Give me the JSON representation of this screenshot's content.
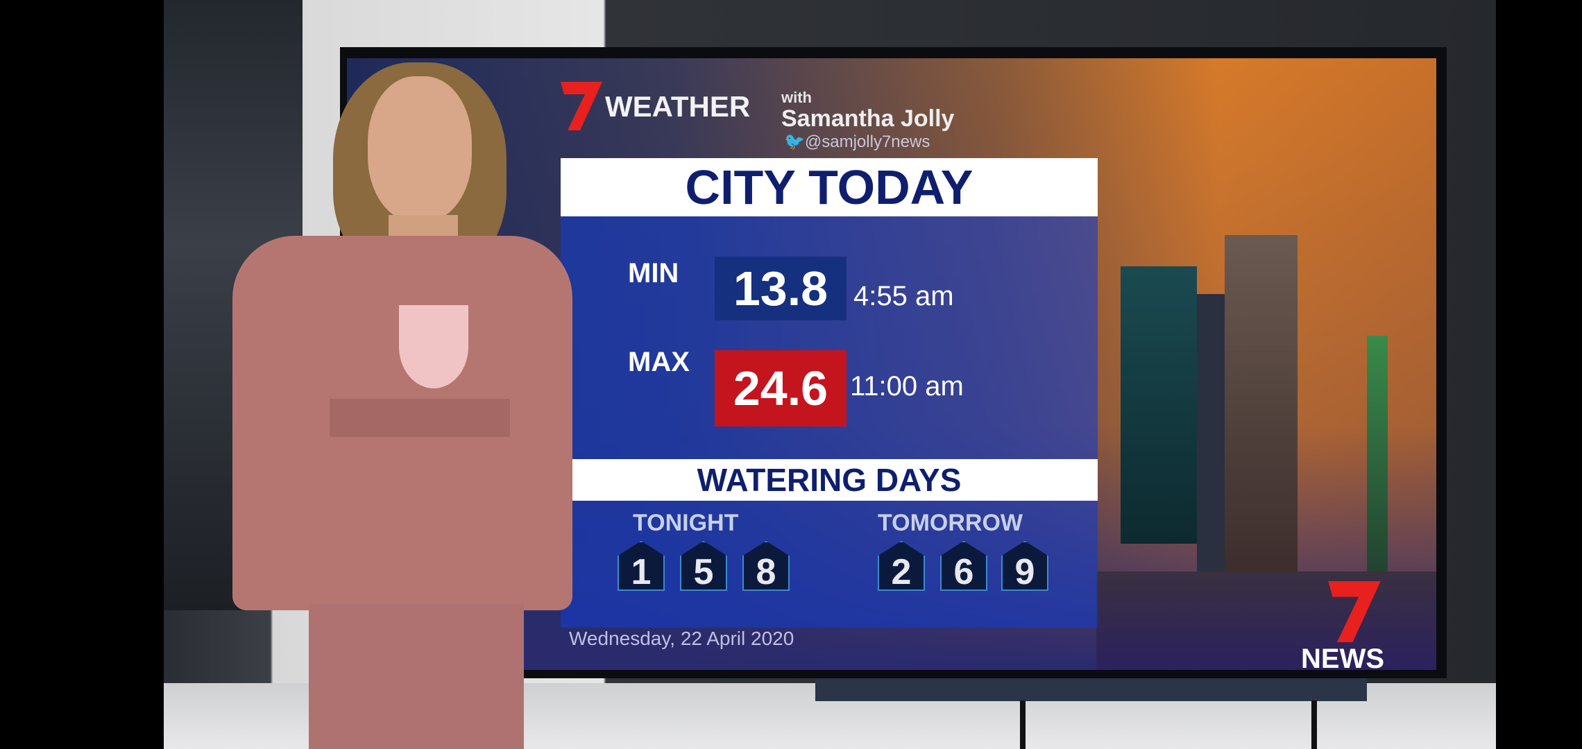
{
  "branding": {
    "logo": "7 weather logo",
    "title": "WEATHER",
    "with": "with",
    "presenter": "Samantha Jolly",
    "twitter_icon": "twitter-bird-icon",
    "handle": "@samjolly7news",
    "channel_logo": "7NEWS",
    "accent": "#e8211e"
  },
  "forecast": {
    "heading": "CITY TODAY",
    "min": {
      "label": "MIN",
      "value": "13.8",
      "time": "4:55 am",
      "color": "#0f2a7a"
    },
    "max": {
      "label": "MAX",
      "value": "24.6",
      "time": "11:00 am",
      "color": "#c4141e"
    }
  },
  "watering": {
    "heading": "WATERING DAYS",
    "tonight": {
      "label": "TONIGHT",
      "days": [
        "1",
        "5",
        "8"
      ]
    },
    "tomorrow": {
      "label": "TOMORROW",
      "days": [
        "2",
        "6",
        "9"
      ]
    }
  },
  "date": "Wednesday, 22 April 2020"
}
